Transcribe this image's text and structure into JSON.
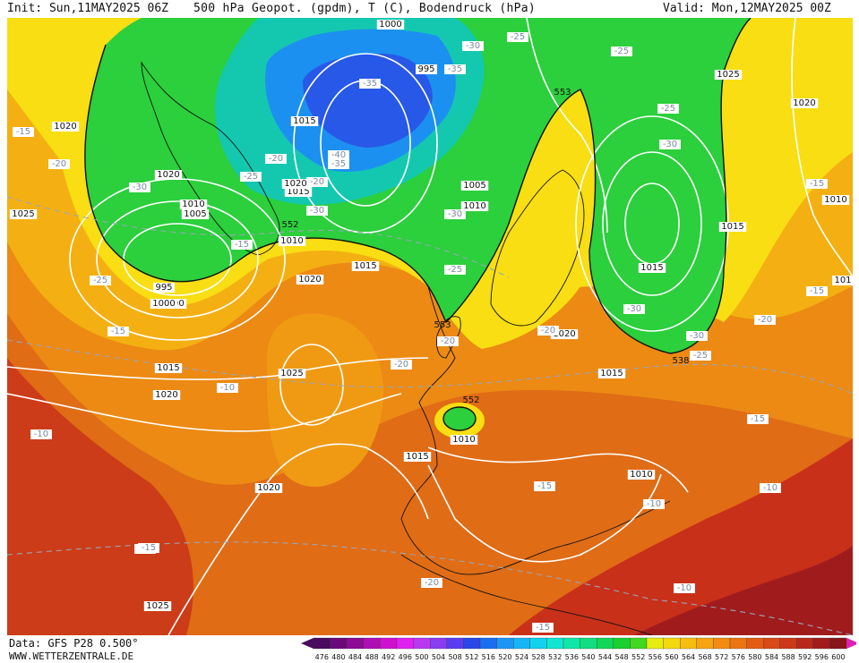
{
  "header": {
    "init": "Init: Sun,11MAY2025 06Z",
    "title": "500 hPa Geopot. (gpdm), T (C), Bodendruck (hPa)",
    "valid": "Valid: Mon,12MAY2025 00Z"
  },
  "footer": {
    "data_source": "Data: GFS P28 0.500°",
    "site": "WWW.WETTERZENTRALE.DE"
  },
  "legend": {
    "values": [
      "476",
      "480",
      "484",
      "488",
      "492",
      "496",
      "500",
      "504",
      "508",
      "512",
      "516",
      "520",
      "524",
      "528",
      "532",
      "536",
      "540",
      "544",
      "548",
      "552",
      "556",
      "560",
      "564",
      "568",
      "572",
      "576",
      "580",
      "584",
      "588",
      "592",
      "596",
      "600"
    ],
    "colors": [
      "#4a0a5e",
      "#6a0a7a",
      "#8c0c96",
      "#ad10b2",
      "#d010d0",
      "#e020f0",
      "#b838f0",
      "#8a3cf0",
      "#5c3cf0",
      "#2a48e8",
      "#1c6ef0",
      "#1c96f4",
      "#16b6f4",
      "#12d2ee",
      "#12e6d2",
      "#10e6a8",
      "#10de80",
      "#12d658",
      "#18d030",
      "#40d820",
      "#e8ec10",
      "#f4d810",
      "#f6be10",
      "#f6a410",
      "#f28c10",
      "#ec7412",
      "#e45c14",
      "#da4a16",
      "#cc3818",
      "#b8281a",
      "#a01c1c",
      "#8a141c"
    ],
    "arrow_left_color": "#4a0a5e",
    "arrow_right_color": "#e020b0"
  },
  "map": {
    "pressure_labels": [
      {
        "text": "1000"
      },
      {
        "text": "995"
      },
      {
        "text": "1015"
      },
      {
        "text": "1000"
      },
      {
        "text": "1020"
      },
      {
        "text": "1015"
      },
      {
        "text": "1020"
      },
      {
        "text": "1005"
      },
      {
        "text": "1010"
      },
      {
        "text": "1005"
      },
      {
        "text": "1010"
      },
      {
        "text": "995"
      },
      {
        "text": "1000"
      },
      {
        "text": "1025"
      },
      {
        "text": "1020"
      },
      {
        "text": "1010"
      },
      {
        "text": "1015"
      },
      {
        "text": "1020"
      },
      {
        "text": "1015"
      },
      {
        "text": "1020"
      },
      {
        "text": "1025"
      },
      {
        "text": "1020"
      },
      {
        "text": "1025"
      },
      {
        "text": "1010"
      },
      {
        "text": "1015"
      },
      {
        "text": "1020"
      },
      {
        "text": "1015"
      },
      {
        "text": "1010"
      },
      {
        "text": "1025"
      },
      {
        "text": "1015"
      },
      {
        "text": "1015"
      },
      {
        "text": "1020"
      },
      {
        "text": "1010"
      },
      {
        "text": "101"
      }
    ],
    "temperature_labels": [
      {
        "text": "-15"
      },
      {
        "text": "-20"
      },
      {
        "text": "-30"
      },
      {
        "text": "-25"
      },
      {
        "text": "-20"
      },
      {
        "text": "-15"
      },
      {
        "text": "-25"
      },
      {
        "text": "-15"
      },
      {
        "text": "-35"
      },
      {
        "text": "-30"
      },
      {
        "text": "-40"
      },
      {
        "text": "-35"
      },
      {
        "text": "-30"
      },
      {
        "text": "-20"
      },
      {
        "text": "-35"
      },
      {
        "text": "-30"
      },
      {
        "text": "-25"
      },
      {
        "text": "-25"
      },
      {
        "text": "-30"
      },
      {
        "text": "-25"
      },
      {
        "text": "-25"
      },
      {
        "text": "-30"
      },
      {
        "text": "-15"
      },
      {
        "text": "-15"
      },
      {
        "text": "-20"
      },
      {
        "text": "-20"
      },
      {
        "text": "-20"
      },
      {
        "text": "-20"
      },
      {
        "text": "-15"
      },
      {
        "text": "-10"
      },
      {
        "text": "-10"
      },
      {
        "text": "-10"
      },
      {
        "text": "-15"
      },
      {
        "text": "-10"
      },
      {
        "text": "-10"
      },
      {
        "text": "-10"
      },
      {
        "text": "-15"
      },
      {
        "text": "-20"
      },
      {
        "text": "-15"
      },
      {
        "text": "-30"
      },
      {
        "text": "-25"
      }
    ],
    "geopotential_labels": [
      {
        "text": "553"
      },
      {
        "text": "552"
      },
      {
        "text": "553"
      },
      {
        "text": "552"
      },
      {
        "text": "538"
      }
    ]
  }
}
